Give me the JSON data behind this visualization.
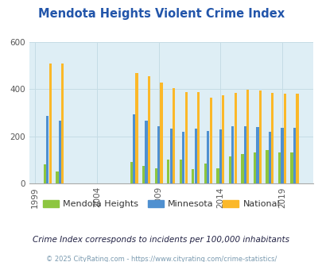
{
  "title": "Mendota Heights Violent Crime Index",
  "title_color": "#2255aa",
  "subtitle": "Crime Index corresponds to incidents per 100,000 inhabitants",
  "footer": "© 2025 CityRating.com - https://www.cityrating.com/crime-statistics/",
  "years": [
    2000,
    2001,
    2007,
    2008,
    2009,
    2010,
    2011,
    2012,
    2013,
    2014,
    2015,
    2016,
    2017,
    2018,
    2019,
    2020
  ],
  "mendota_heights": [
    80,
    50,
    90,
    75,
    65,
    100,
    100,
    60,
    85,
    65,
    115,
    125,
    130,
    140,
    130,
    130
  ],
  "minnesota": [
    285,
    265,
    293,
    265,
    243,
    232,
    220,
    232,
    222,
    228,
    243,
    243,
    240,
    220,
    237,
    237
  ],
  "national": [
    507,
    507,
    467,
    455,
    428,
    405,
    387,
    388,
    363,
    373,
    383,
    398,
    395,
    383,
    379,
    379
  ],
  "colors": {
    "mendota": "#8dc63f",
    "minnesota": "#4f90d0",
    "national": "#fbb829",
    "plot_bg": "#deeef5",
    "grid": "#c5dce5"
  },
  "ylim": [
    0,
    600
  ],
  "yticks": [
    0,
    200,
    400,
    600
  ],
  "xtick_years": [
    1999,
    2004,
    2009,
    2014,
    2019
  ],
  "legend_labels": [
    "Mendota Heights",
    "Minnesota",
    "National"
  ],
  "legend_colors": [
    "#8dc63f",
    "#4f90d0",
    "#fbb829"
  ]
}
